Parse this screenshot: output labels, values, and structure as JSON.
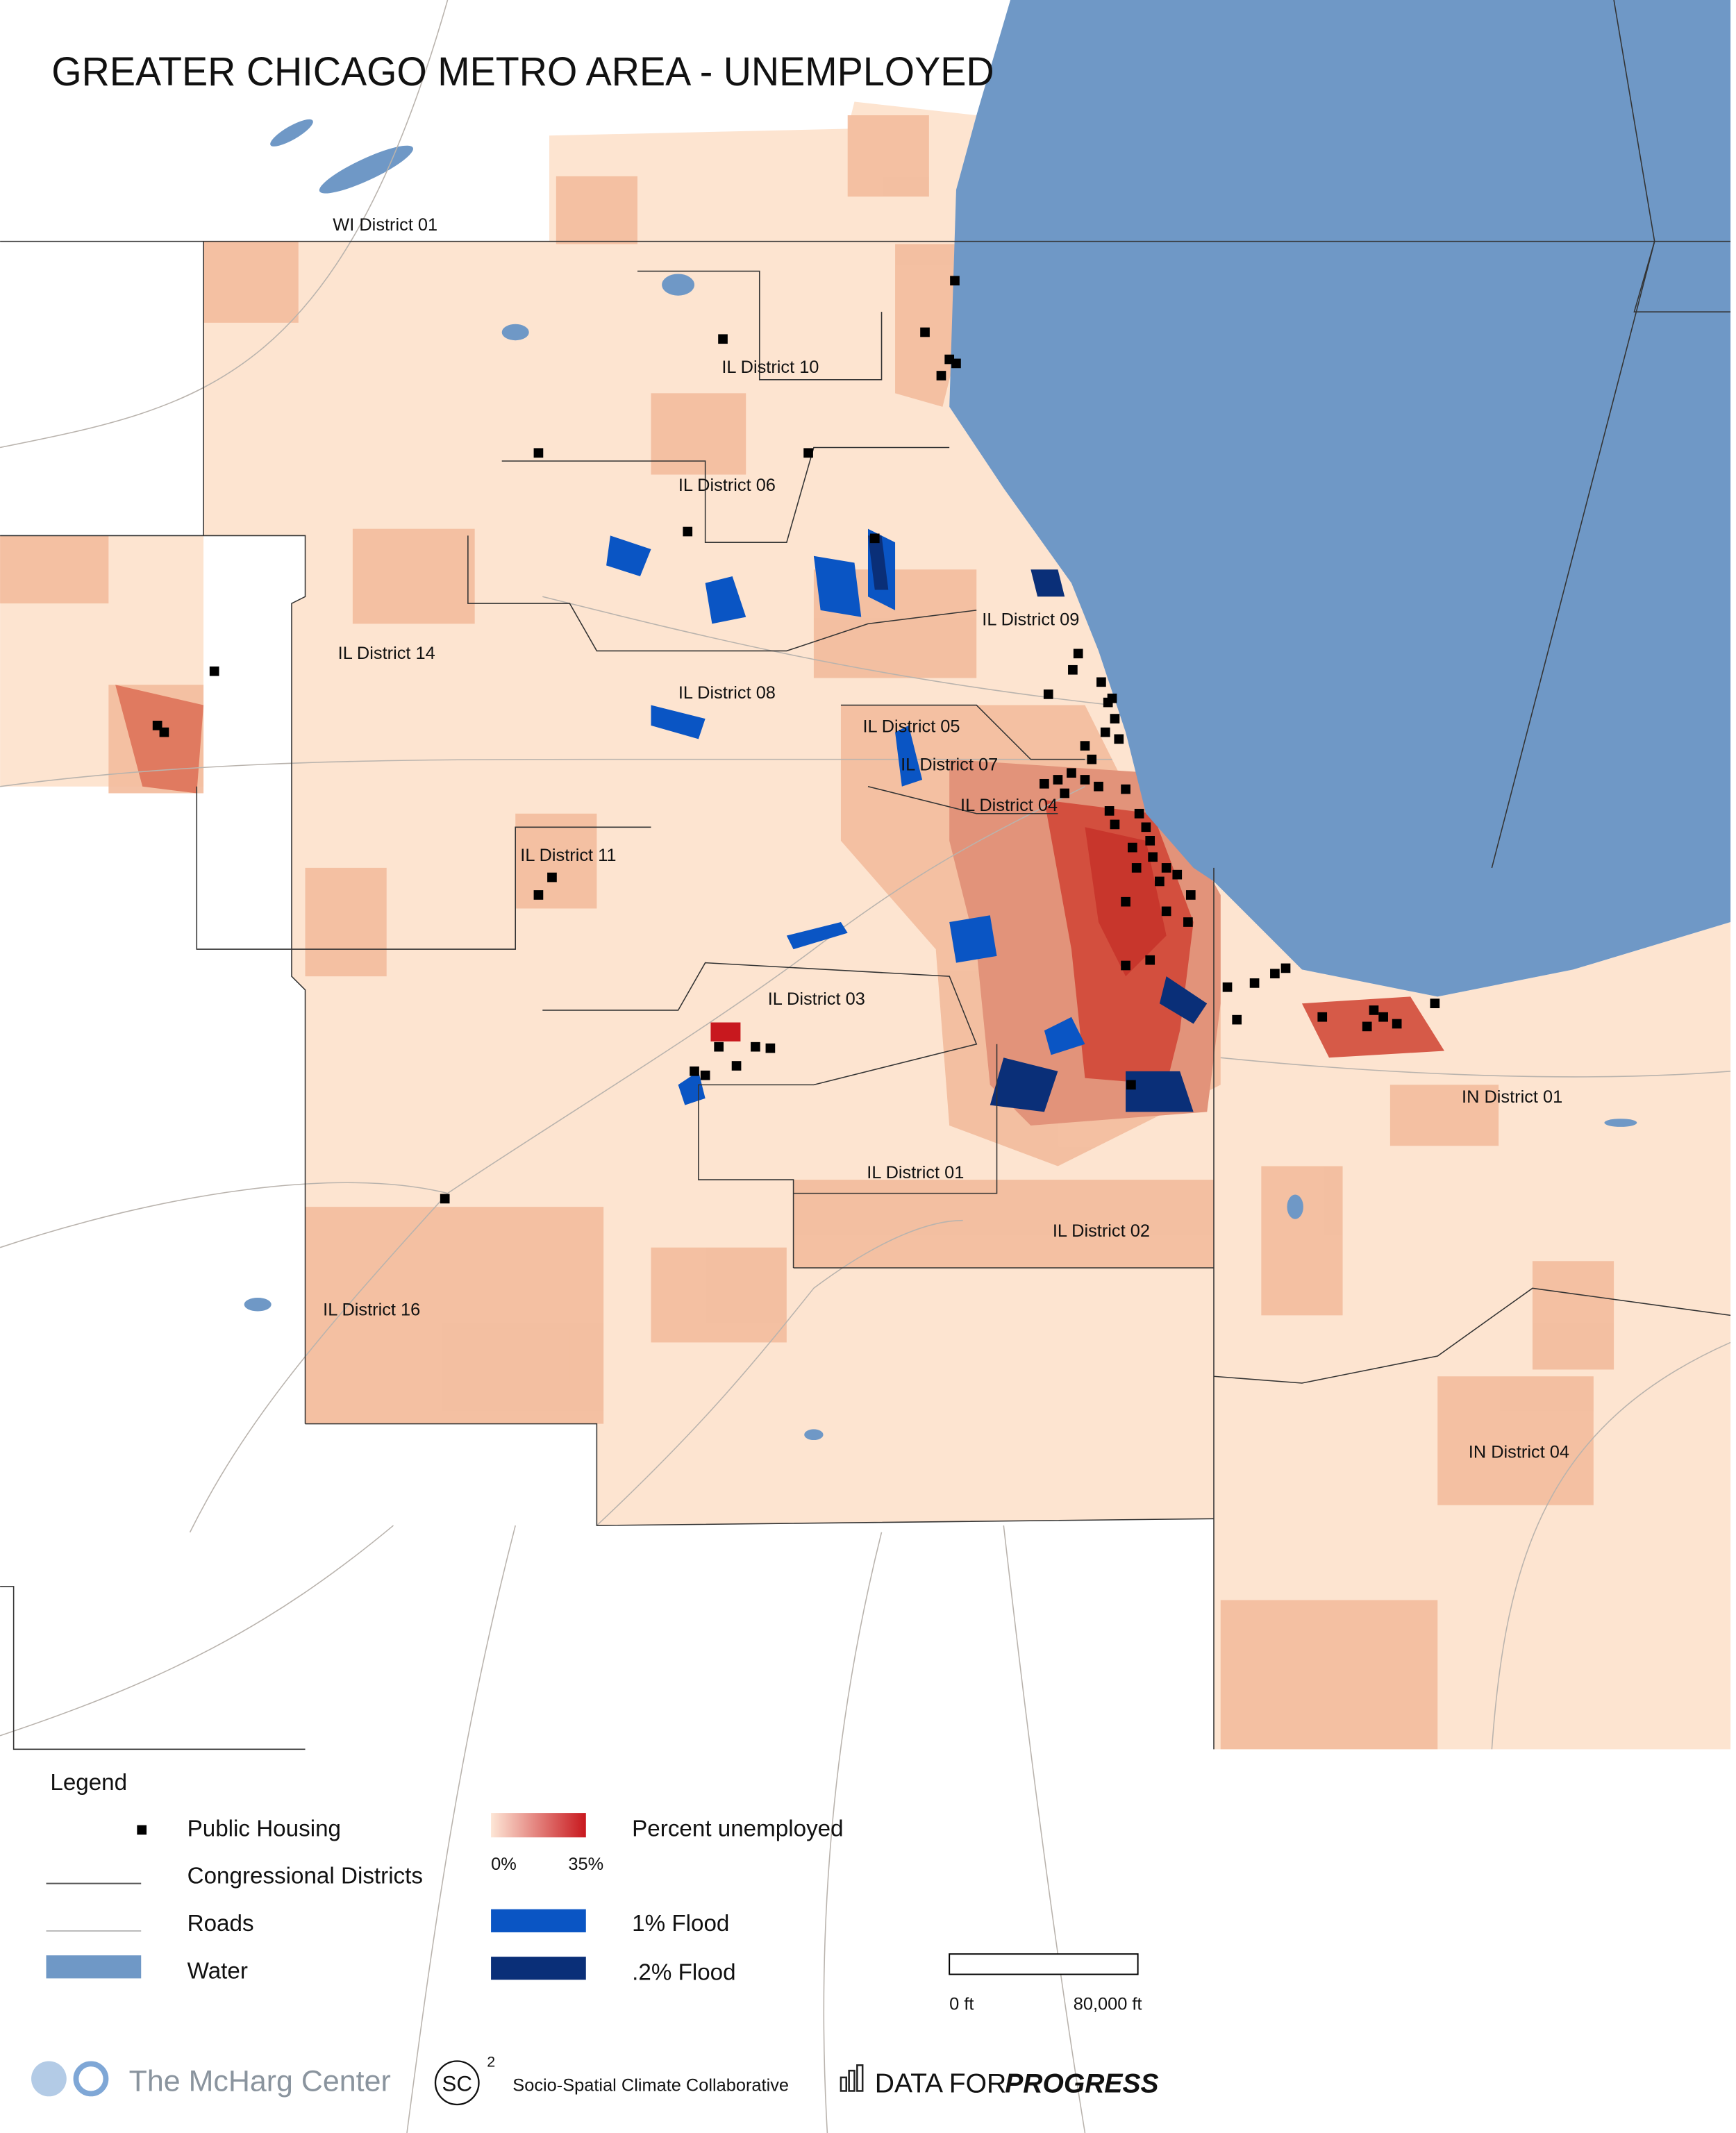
{
  "title": "GREATER CHICAGO METRO AREA - UNEMPLOYED",
  "districts": [
    "WI District 01",
    "IL District 10",
    "IL District 06",
    "IL District 09",
    "IL District 14",
    "IL District 08",
    "IL District 05",
    "IL District 07",
    "IL District 04",
    "IL District 11",
    "IL District 03",
    "IN District 01",
    "IL District 01",
    "IL District 02",
    "IL District 16",
    "IN District 04"
  ],
  "legend": {
    "title": "Legend",
    "items": [
      "Public Housing",
      "Congressional Districts",
      "Roads",
      "Water"
    ],
    "gradient": {
      "label": "Percent unemployed",
      "min": "0%",
      "max": "35%"
    },
    "floods": [
      "1% Flood",
      ".2% Flood"
    ]
  },
  "scale": {
    "start": "0 ft",
    "end": "80,000 ft"
  },
  "footer": {
    "mcharg": "The McHarg Center",
    "sc_mark": "SC",
    "sc_sup": "2",
    "sc_name": "Socio-Spatial Climate Collaborative",
    "dfp": "DATA FOR",
    "dfp_bold": "PROGRESS"
  }
}
